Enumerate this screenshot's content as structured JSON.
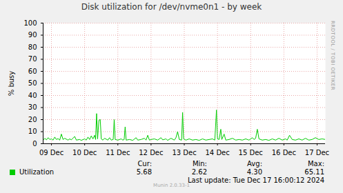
{
  "chart_data": {
    "type": "line",
    "title": "Disk utilization for /dev/nvme0n1 - by week",
    "ylabel": "% busy",
    "xlim": [
      -0.25,
      8.25
    ],
    "xticks": [
      {
        "value": 0,
        "label": "09 Dec"
      },
      {
        "value": 1,
        "label": "10 Dec"
      },
      {
        "value": 2,
        "label": "11 Dec"
      },
      {
        "value": 3,
        "label": "12 Dec"
      },
      {
        "value": 4,
        "label": "13 Dec"
      },
      {
        "value": 5,
        "label": "14 Dec"
      },
      {
        "value": 6,
        "label": "15 Dec"
      },
      {
        "value": 7,
        "label": "16 Dec"
      },
      {
        "value": 8,
        "label": "17 Dec"
      }
    ],
    "ylim": [
      0,
      100
    ],
    "yticks": [
      0,
      10,
      20,
      30,
      40,
      50,
      60,
      70,
      80,
      90,
      100
    ],
    "grid": true,
    "legend": "bottom",
    "x": [
      -0.25,
      -0.2,
      -0.15,
      -0.1,
      -0.05,
      0,
      0.05,
      0.1,
      0.15,
      0.2,
      0.25,
      0.3,
      0.35,
      0.4,
      0.5,
      0.55,
      0.6,
      0.7,
      0.75,
      0.85,
      0.9,
      1.0,
      1.05,
      1.1,
      1.15,
      1.2,
      1.25,
      1.3,
      1.33,
      1.36,
      1.39,
      1.43,
      1.47,
      1.5,
      1.55,
      1.6,
      1.7,
      1.75,
      1.8,
      1.86,
      1.89,
      1.92,
      2.0,
      2.1,
      2.15,
      2.19,
      2.22,
      2.25,
      2.35,
      2.45,
      2.55,
      2.6,
      2.7,
      2.8,
      2.85,
      2.9,
      2.95,
      3.0,
      3.1,
      3.2,
      3.3,
      3.35,
      3.45,
      3.5,
      3.6,
      3.7,
      3.75,
      3.8,
      3.85,
      3.92,
      3.95,
      3.98,
      4.05,
      4.15,
      4.25,
      4.35,
      4.45,
      4.55,
      4.65,
      4.75,
      4.85,
      4.92,
      4.97,
      5.0,
      5.05,
      5.1,
      5.13,
      5.2,
      5.25,
      5.35,
      5.45,
      5.55,
      5.65,
      5.75,
      5.85,
      5.95,
      6.05,
      6.1,
      6.15,
      6.2,
      6.25,
      6.35,
      6.45,
      6.55,
      6.65,
      6.75,
      6.85,
      6.95,
      7.05,
      7.1,
      7.17,
      7.25,
      7.35,
      7.45,
      7.55,
      7.65,
      7.75,
      7.85,
      7.95,
      8.05,
      8.15,
      8.25
    ],
    "series": [
      {
        "name": "Utilization",
        "color": "#00cc00",
        "values": [
          3.0,
          4.5,
          3.2,
          5.0,
          3.5,
          4.0,
          3.0,
          5.5,
          3.5,
          4.2,
          3.0,
          8.0,
          3.5,
          4.5,
          3.0,
          4.0,
          3.2,
          6.0,
          3.0,
          3.5,
          2.8,
          4.0,
          3.0,
          5.5,
          3.5,
          6.5,
          4.0,
          7.0,
          3.5,
          25.0,
          4.0,
          19.5,
          20.0,
          4.0,
          3.0,
          4.5,
          3.0,
          5.0,
          3.0,
          3.5,
          20.0,
          3.5,
          3.0,
          4.0,
          3.0,
          3.5,
          14.0,
          3.0,
          3.5,
          2.8,
          5.0,
          3.0,
          3.5,
          4.5,
          3.0,
          7.0,
          3.0,
          3.5,
          4.0,
          3.0,
          5.0,
          3.2,
          4.0,
          2.8,
          4.5,
          3.0,
          5.0,
          10.0,
          3.5,
          3.0,
          26.0,
          4.0,
          3.0,
          4.0,
          3.0,
          3.5,
          2.8,
          4.0,
          3.0,
          3.5,
          4.0,
          3.0,
          28.0,
          4.0,
          3.5,
          12.0,
          3.5,
          8.0,
          3.0,
          3.5,
          4.5,
          3.0,
          3.5,
          3.0,
          4.0,
          3.0,
          5.0,
          3.5,
          4.5,
          12.0,
          4.0,
          3.0,
          3.5,
          2.8,
          4.0,
          3.0,
          4.5,
          3.0,
          4.0,
          3.0,
          7.0,
          3.5,
          3.0,
          4.0,
          3.0,
          4.5,
          3.0,
          3.5,
          5.0,
          3.5,
          4.0,
          3.5
        ],
        "stats": [
          5.68,
          2.62,
          {
            "value": 4.3,
            "label": "4.30"
          },
          65.11
        ]
      }
    ],
    "stat_names": [
      "Cur:",
      "Min:",
      "Avg:",
      "Max:"
    ],
    "last_update": "Last update: Tue Dec 17 16:00:12 2024",
    "watermark": "RRDTOOL / TOBI OETIKER",
    "footer": "Munin 2.0.33-1"
  }
}
